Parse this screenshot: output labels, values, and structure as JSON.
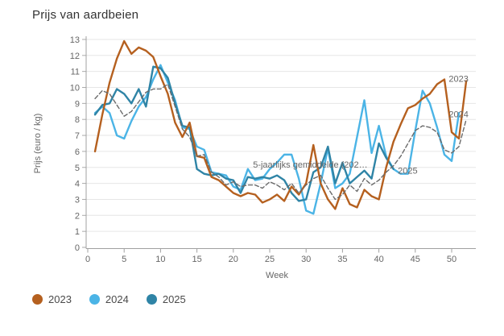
{
  "title": "Prijs van aardbeien",
  "legend": {
    "items": [
      {
        "label": "2023",
        "color": "#b5601f"
      },
      {
        "label": "2024",
        "color": "#4bb4e6"
      },
      {
        "label": "2025",
        "color": "#2f84a6"
      }
    ]
  },
  "chart_data": {
    "type": "line",
    "title": "Prijs van aardbeien",
    "xlabel": "Week",
    "ylabel": "Prijs (euro / kg)",
    "x_ticks": [
      0,
      5,
      10,
      15,
      20,
      25,
      30,
      35,
      40,
      45,
      50
    ],
    "y_ticks": [
      0,
      1,
      2,
      3,
      4,
      5,
      6,
      7,
      8,
      9,
      10,
      11,
      12,
      13
    ],
    "xlim": [
      0,
      53
    ],
    "ylim": [
      0,
      13
    ],
    "grid": true,
    "legend_position": "bottom-left",
    "weeks_start": 1,
    "series": [
      {
        "name": "2024",
        "color": "#4bb4e6",
        "dash": null,
        "values": [
          8.4,
          8.8,
          8.4,
          7.0,
          6.8,
          7.9,
          8.8,
          9.4,
          10.5,
          11.4,
          10.3,
          9.2,
          7.5,
          7.4,
          6.3,
          6.1,
          4.7,
          4.6,
          4.5,
          3.8,
          3.6,
          4.9,
          4.2,
          4.3,
          4.9,
          5.3,
          5.8,
          5.8,
          4.3,
          2.3,
          2.1,
          4.0,
          6.2,
          3.7,
          4.0,
          4.6,
          6.9,
          9.2,
          5.9,
          7.6,
          5.7,
          4.9,
          4.6,
          4.6,
          7.3,
          9.8,
          9.0,
          7.5,
          5.8,
          5.4,
          8.4,
          null
        ]
      },
      {
        "name": "2025",
        "color": "#2f84a6",
        "dash": null,
        "values": [
          8.3,
          8.9,
          9.0,
          9.9,
          9.6,
          9.0,
          9.9,
          8.8,
          11.3,
          11.2,
          10.6,
          9.0,
          7.6,
          7.5,
          4.9,
          4.6,
          4.5,
          4.6,
          4.3,
          4.2,
          3.4,
          4.4,
          4.3,
          4.4,
          4.3,
          4.5,
          4.2,
          3.4,
          2.9,
          3.0,
          4.7,
          5.0,
          6.3,
          4.0,
          5.3,
          4.0,
          4.4,
          4.8,
          4.3,
          6.5,
          5.6,
          4.9,
          null,
          null,
          null,
          null,
          null,
          null,
          null,
          null,
          null,
          null
        ]
      },
      {
        "name": "2023",
        "color": "#b5601f",
        "dash": null,
        "values": [
          6.0,
          8.3,
          10.3,
          11.8,
          12.9,
          12.1,
          12.5,
          12.3,
          11.9,
          10.7,
          9.6,
          7.8,
          6.9,
          7.8,
          5.7,
          5.6,
          4.4,
          4.2,
          3.8,
          3.4,
          3.2,
          3.4,
          3.3,
          2.8,
          3.0,
          3.3,
          2.9,
          3.8,
          3.3,
          4.0,
          6.4,
          4.0,
          3.0,
          2.4,
          3.7,
          2.7,
          2.5,
          3.6,
          3.2,
          3.0,
          5.0,
          6.6,
          7.7,
          8.7,
          8.9,
          9.3,
          9.6,
          10.2,
          10.5,
          7.2,
          6.8,
          10.4
        ]
      },
      {
        "name": "5-jaarlijks gemiddelde (202…",
        "color": "#6b6b6b",
        "dash": "5,3",
        "values": [
          9.3,
          9.8,
          9.6,
          8.9,
          8.2,
          8.5,
          9.1,
          9.7,
          9.9,
          9.9,
          10.2,
          8.8,
          7.4,
          6.9,
          5.7,
          5.8,
          4.7,
          4.4,
          3.9,
          4.1,
          3.8,
          3.9,
          3.9,
          3.7,
          4.1,
          3.9,
          3.6,
          4.0,
          3.4,
          3.9,
          4.3,
          4.5,
          3.7,
          3.0,
          3.3,
          3.9,
          3.5,
          4.3,
          3.9,
          4.2,
          4.7,
          5.1,
          5.7,
          6.5,
          7.3,
          7.6,
          7.5,
          7.2,
          6.1,
          5.9,
          6.3,
          8.0
        ]
      }
    ],
    "annotations": [
      {
        "text": "5-jaarlijks gemiddelde (202…",
        "week": 22.7,
        "value": 5.2,
        "anchor": "start"
      },
      {
        "text": "2025",
        "week": 42.6,
        "value": 4.8,
        "anchor": "start"
      },
      {
        "text": "2023",
        "week": 49.6,
        "value": 10.55,
        "anchor": "start"
      },
      {
        "text": "2024",
        "week": 49.6,
        "value": 8.35,
        "anchor": "start"
      }
    ]
  }
}
